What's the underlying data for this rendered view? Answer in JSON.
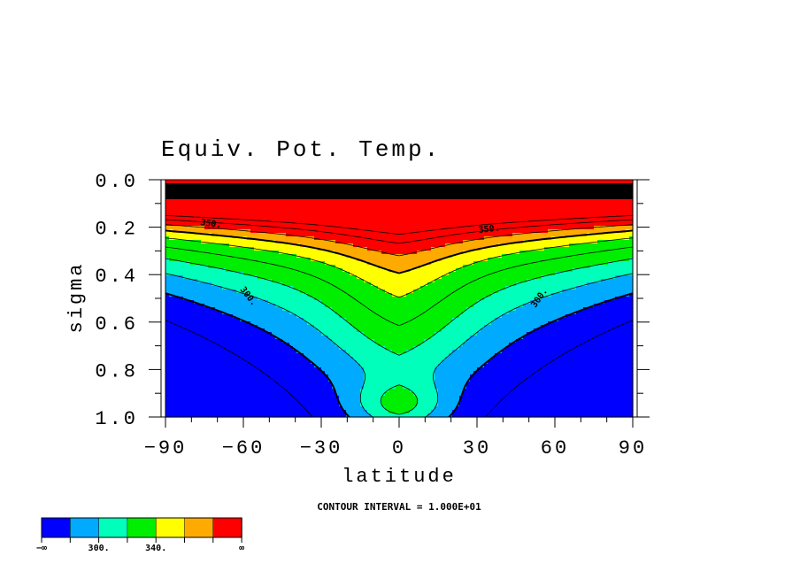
{
  "chart_data": {
    "type": "contour",
    "title": "Equiv. Pot. Temp.",
    "xlabel": "latitude",
    "ylabel": "sigma",
    "xlim": [
      -90,
      90
    ],
    "ylim": [
      1.0,
      0.0
    ],
    "xticks": [
      "−90",
      "−60",
      "−30",
      "0",
      "30",
      "60",
      "90"
    ],
    "yticks": [
      "0.0",
      "0.2",
      "0.4",
      "0.6",
      "0.8",
      "1.0"
    ],
    "contour_interval_text": "CONTOUR INTERVAL = 1.000E+01",
    "contour_interval": 10,
    "contour_labels": [
      "350.",
      "300."
    ],
    "colorbar": {
      "colors": [
        "#0000ff",
        "#00aaff",
        "#00ffbb",
        "#00ee00",
        "#ffff00",
        "#ffaa00",
        "#ff0000"
      ],
      "labels": [
        "−∞",
        "300.",
        "340.",
        "∞"
      ]
    },
    "fill_levels": [
      290,
      300,
      310,
      320,
      340,
      350,
      360
    ]
  }
}
